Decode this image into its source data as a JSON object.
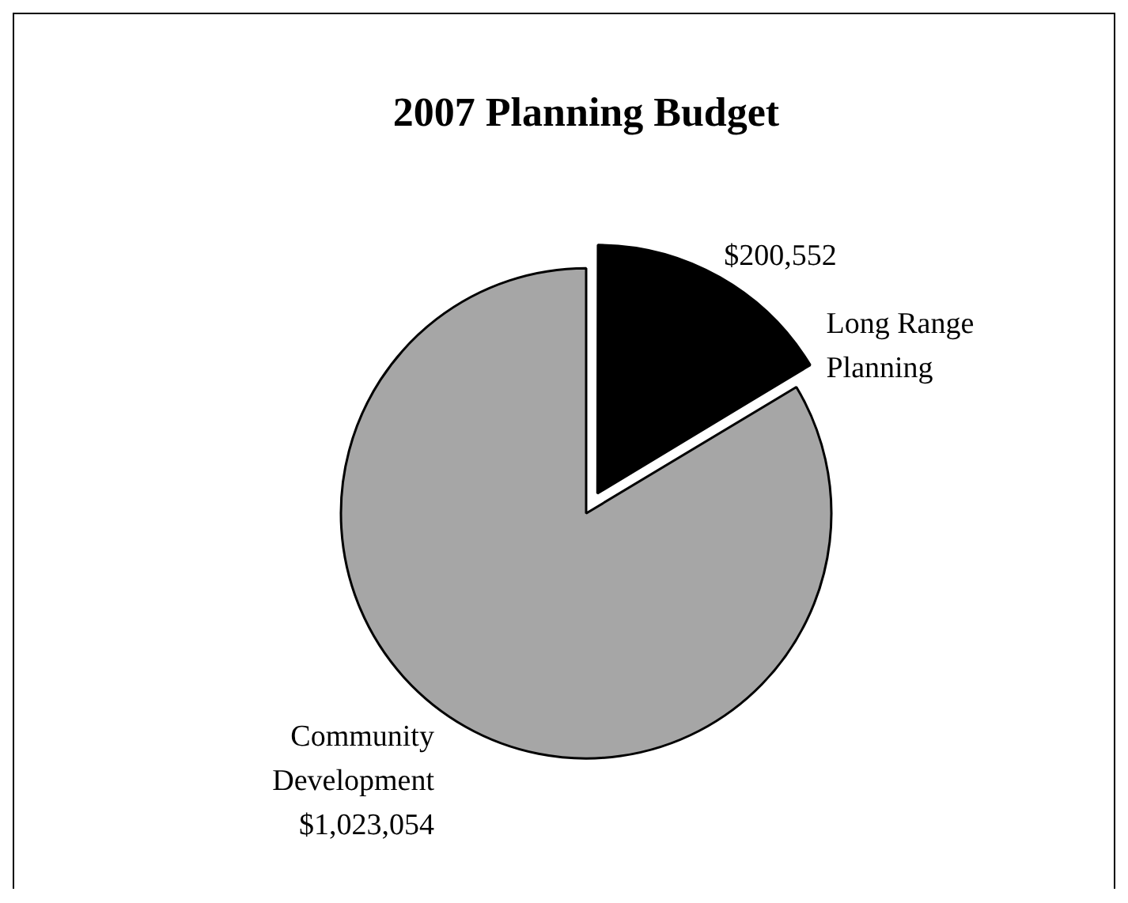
{
  "chart_data": {
    "type": "pie",
    "title": "2007 Planning Budget",
    "categories": [
      "Long Range Planning",
      "Community Development"
    ],
    "values": [
      200552,
      1023054
    ],
    "colors": [
      "#000000",
      "#a6a6a6"
    ],
    "value_labels": [
      "$200,552",
      "$1,023,054"
    ],
    "legend": false
  }
}
